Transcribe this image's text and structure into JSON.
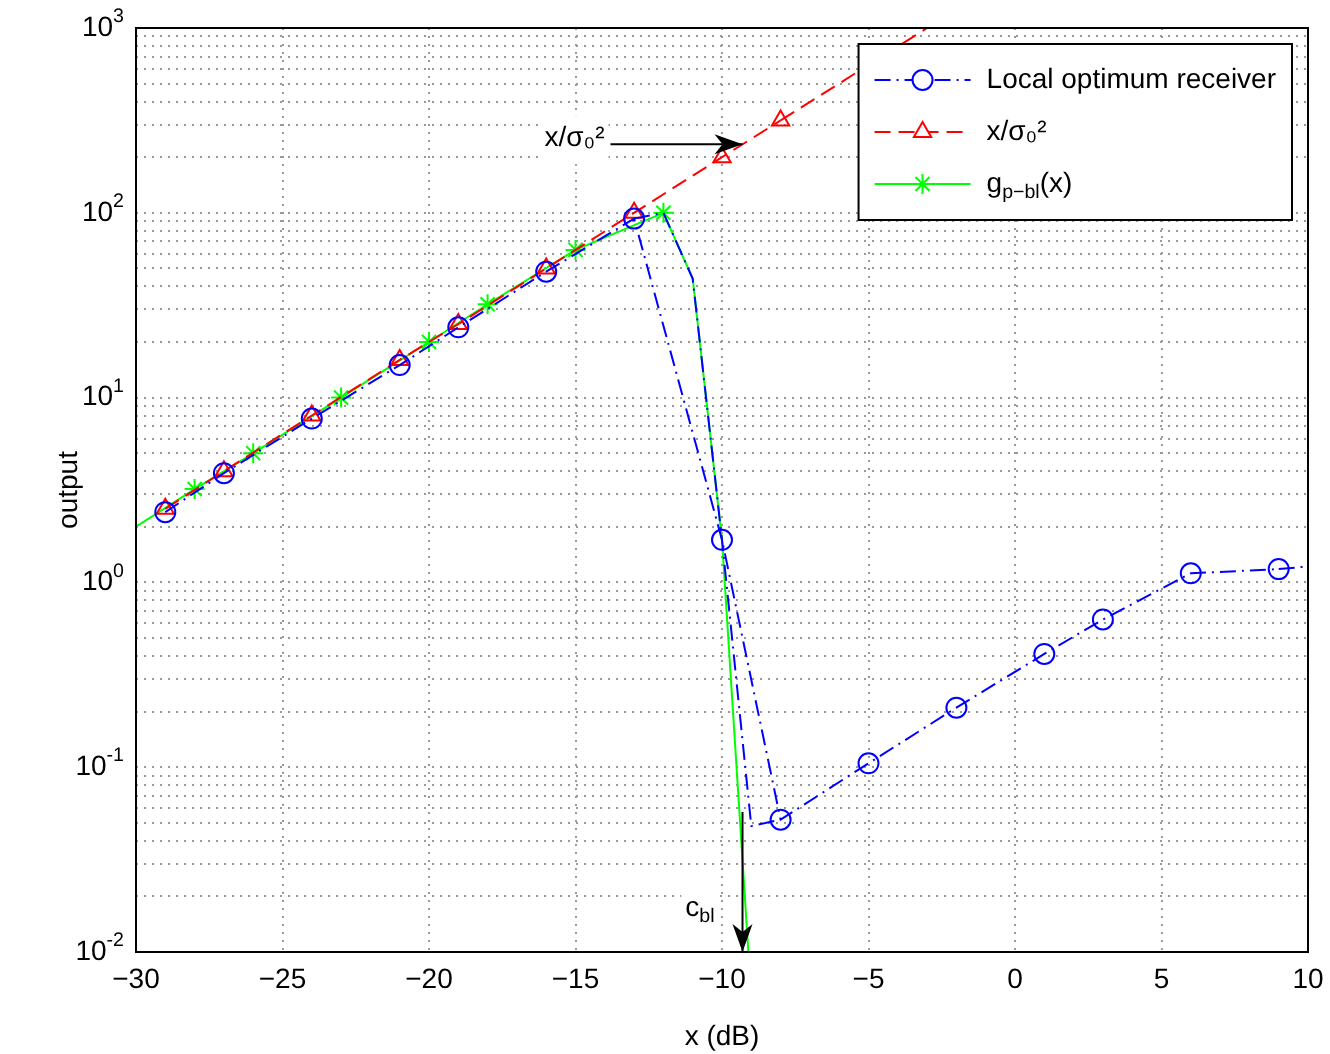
{
  "chart_data": {
    "type": "line",
    "xlabel": "x (dB)",
    "ylabel": "output",
    "log": "y",
    "grid": true,
    "legend": "top right",
    "xlim": [
      -30,
      10
    ],
    "xticks": [
      -30,
      -25,
      -20,
      -15,
      -10,
      -5,
      0,
      5,
      10
    ],
    "ylim": [
      0.01,
      1000
    ],
    "yticks": [
      {
        "value": 0.01,
        "label": "10$^{-2}$"
      },
      {
        "value": 0.02,
        "label": null
      },
      {
        "value": 0.03,
        "label": null
      },
      {
        "value": 0.04,
        "label": null
      },
      {
        "value": 0.05,
        "label": null
      },
      {
        "value": 0.06,
        "label": null
      },
      {
        "value": 0.07,
        "label": null
      },
      {
        "value": 0.08,
        "label": null
      },
      {
        "value": 0.09,
        "label": null
      },
      {
        "value": 0.1,
        "label": "10$^{-1}$"
      },
      {
        "value": 0.2,
        "label": null
      },
      {
        "value": 0.3,
        "label": null
      },
      {
        "value": 0.4,
        "label": null
      },
      {
        "value": 0.5,
        "label": null
      },
      {
        "value": 0.6,
        "label": null
      },
      {
        "value": 0.7,
        "label": null
      },
      {
        "value": 0.8,
        "label": null
      },
      {
        "value": 0.9,
        "label": null
      },
      {
        "value": 1,
        "label": "10$^{0}$"
      },
      {
        "value": 2,
        "label": null
      },
      {
        "value": 3,
        "label": null
      },
      {
        "value": 4,
        "label": null
      },
      {
        "value": 5,
        "label": null
      },
      {
        "value": 6,
        "label": null
      },
      {
        "value": 7,
        "label": null
      },
      {
        "value": 8,
        "label": null
      },
      {
        "value": 9,
        "label": null
      },
      {
        "value": 10,
        "label": "10$^{1}$"
      },
      {
        "value": 20,
        "label": null
      },
      {
        "value": 30,
        "label": null
      },
      {
        "value": 40,
        "label": null
      },
      {
        "value": 50,
        "label": null
      },
      {
        "value": 60,
        "label": null
      },
      {
        "value": 70,
        "label": null
      },
      {
        "value": 80,
        "label": null
      },
      {
        "value": 90,
        "label": null
      },
      {
        "value": 100,
        "label": "10$^{2}$"
      },
      {
        "value": 200,
        "label": null
      },
      {
        "value": 300,
        "label": null
      },
      {
        "value": 400,
        "label": null
      },
      {
        "value": 500,
        "label": null
      },
      {
        "value": 600,
        "label": null
      },
      {
        "value": 700,
        "label": null
      },
      {
        "value": 800,
        "label": null
      },
      {
        "value": 900,
        "label": null
      },
      {
        "value": 1000,
        "label": "10$^{3}$"
      }
    ],
    "series": [
      {
        "name": "Local optimum receiver",
        "color": "#0000ff",
        "marker": "circle",
        "line_style": "dashdot",
        "x": [
          -29,
          -27,
          -24,
          -21,
          -19,
          -16,
          -13,
          -10,
          -8,
          -5,
          -2,
          1,
          3,
          6,
          9
        ],
        "values": [
          2.4,
          3.9,
          7.7,
          15,
          24,
          48,
          93,
          1.7,
          0.052,
          0.105,
          0.21,
          0.41,
          0.63,
          1.12,
          1.18
        ]
      },
      {
        "color": "#0000ff",
        "marker": "none",
        "line_style": "dashdot",
        "x": [
          -13,
          -12,
          -11,
          -10,
          -9,
          -8
        ],
        "values": [
          93,
          100,
          44,
          1.7,
          0.048,
          0.052
        ]
      },
      {
        "color": "#0000ff",
        "marker": "none",
        "line_style": "dashdot",
        "x": [
          9,
          10
        ],
        "values": [
          1.18,
          1.22
        ]
      },
      {
        "name": "x/σ₀²",
        "color": "#ff0000",
        "marker": "triangle",
        "line_style": "dashed",
        "x": [
          -29,
          -27,
          -24,
          -21,
          -19,
          -16,
          -13,
          -10,
          -8
        ],
        "values": [
          2.5,
          4,
          8,
          16,
          25,
          50,
          100,
          200,
          316
        ]
      },
      {
        "color": "#ff0000",
        "marker": "none",
        "line_style": "dashed",
        "x": [
          -8,
          -3
        ],
        "values": [
          316,
          1000
        ]
      },
      {
        "name": "g$_{p−bl}$(x)",
        "color": "#00ff00",
        "marker": "cross",
        "line_style": "solid",
        "x": [
          -28,
          -26,
          -23,
          -20,
          -18,
          -15,
          -12
        ],
        "values": [
          3.2,
          5,
          10,
          20,
          32,
          63,
          100
        ]
      },
      {
        "color": "#00ff00",
        "marker": "none",
        "line_style": "solid",
        "x": [
          -30,
          -28
        ],
        "values": [
          2,
          3.2
        ]
      },
      {
        "color": "#00ff00",
        "marker": "none",
        "line_style": "solid",
        "x": [
          -12,
          -11,
          -10,
          -9.1
        ],
        "values": [
          100,
          44,
          1.7,
          0.01
        ]
      }
    ],
    "annotations": [
      {
        "text": "x/σ₀²",
        "x": -9.3,
        "y": 235
      },
      {
        "text": "c$_{bl}$",
        "x": -9.3,
        "y": 0.01
      }
    ]
  }
}
